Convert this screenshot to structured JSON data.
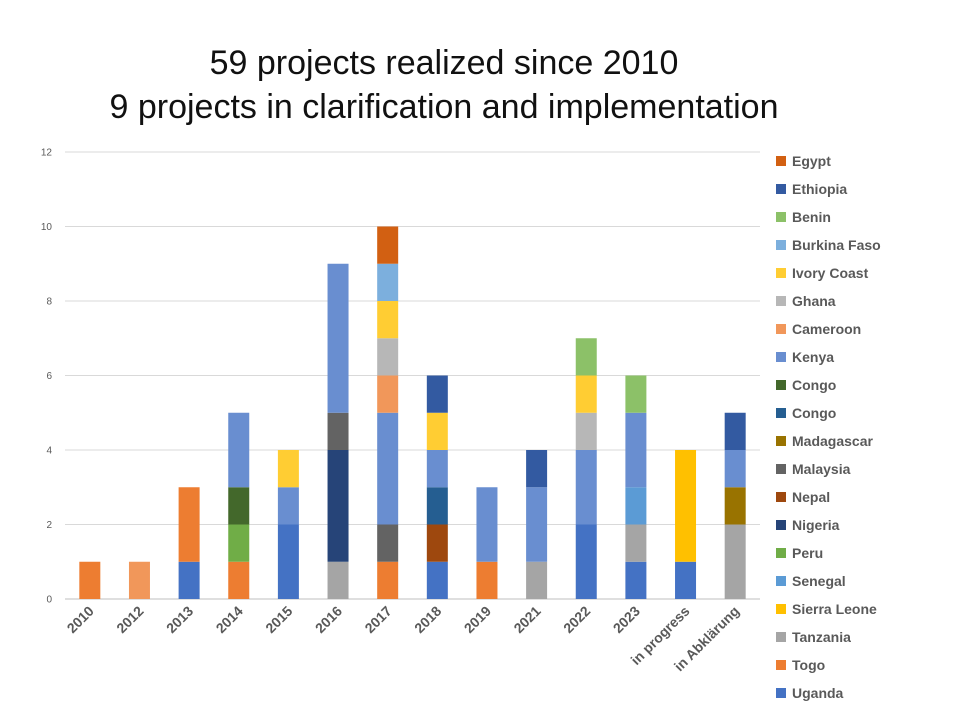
{
  "title_line1": "59 projects realized since 2010",
  "title_line2": "9 projects in clarification and implementation",
  "chart_data": {
    "type": "bar",
    "stacked": true,
    "title": "59 projects realized since 2010 / 9 projects in clarification and implementation",
    "xlabel": "",
    "ylabel": "",
    "ylim": [
      0,
      12
    ],
    "yticks": [
      0,
      2,
      4,
      6,
      8,
      10,
      12
    ],
    "grid": true,
    "legend_position": "right",
    "categories": [
      "2010",
      "2012",
      "2013",
      "2014",
      "2015",
      "2016",
      "2017",
      "2018",
      "2019",
      "2021",
      "2022",
      "2023",
      "in progress",
      "in Abklärung"
    ],
    "series": [
      {
        "name": "Uganda",
        "color": "#4472C4",
        "values": [
          0,
          0,
          1,
          0,
          2,
          0,
          0,
          1,
          0,
          0,
          2,
          1,
          1,
          0
        ]
      },
      {
        "name": "Togo",
        "color": "#ED7D31",
        "values": [
          1,
          0,
          2,
          1,
          0,
          0,
          1,
          0,
          1,
          0,
          0,
          0,
          0,
          0
        ]
      },
      {
        "name": "Tanzania",
        "color": "#A5A5A5",
        "values": [
          0,
          0,
          0,
          0,
          0,
          1,
          0,
          0,
          0,
          1,
          0,
          1,
          0,
          2
        ]
      },
      {
        "name": "Sierra Leone",
        "color": "#FFC000",
        "values": [
          0,
          0,
          0,
          0,
          0,
          0,
          0,
          0,
          0,
          0,
          0,
          0,
          3,
          0
        ]
      },
      {
        "name": "Senegal",
        "color": "#5B9BD5",
        "values": [
          0,
          0,
          0,
          0,
          0,
          0,
          0,
          0,
          0,
          0,
          0,
          1,
          0,
          0
        ]
      },
      {
        "name": "Peru",
        "color": "#70AD47",
        "values": [
          0,
          0,
          0,
          1,
          0,
          0,
          0,
          0,
          0,
          0,
          0,
          0,
          0,
          0
        ]
      },
      {
        "name": "Nigeria",
        "color": "#264478",
        "values": [
          0,
          0,
          0,
          0,
          0,
          3,
          0,
          0,
          0,
          0,
          0,
          0,
          0,
          0
        ]
      },
      {
        "name": "Nepal",
        "color": "#9E480E",
        "values": [
          0,
          0,
          0,
          0,
          0,
          0,
          0,
          1,
          0,
          0,
          0,
          0,
          0,
          0
        ]
      },
      {
        "name": "Malaysia",
        "color": "#636363",
        "values": [
          0,
          0,
          0,
          0,
          0,
          1,
          1,
          0,
          0,
          0,
          0,
          0,
          0,
          0
        ]
      },
      {
        "name": "Madagascar",
        "color": "#997300",
        "values": [
          0,
          0,
          0,
          0,
          0,
          0,
          0,
          0,
          0,
          0,
          0,
          0,
          0,
          1
        ]
      },
      {
        "name": "Congo",
        "color": "#255E91",
        "values": [
          0,
          0,
          0,
          0,
          0,
          0,
          0,
          1,
          0,
          0,
          0,
          0,
          0,
          0
        ]
      },
      {
        "name": "Congo",
        "color": "#43682B",
        "values": [
          0,
          0,
          0,
          1,
          0,
          0,
          0,
          0,
          0,
          0,
          0,
          0,
          0,
          0
        ]
      },
      {
        "name": "Kenya",
        "color": "#698ED0",
        "values": [
          0,
          0,
          0,
          2,
          1,
          4,
          3,
          1,
          2,
          2,
          2,
          2,
          0,
          1
        ]
      },
      {
        "name": "Cameroon",
        "color": "#F1975A",
        "values": [
          0,
          1,
          0,
          0,
          0,
          0,
          1,
          0,
          0,
          0,
          0,
          0,
          0,
          0
        ]
      },
      {
        "name": "Ghana",
        "color": "#B7B7B7",
        "values": [
          0,
          0,
          0,
          0,
          0,
          0,
          1,
          0,
          0,
          0,
          1,
          0,
          0,
          0
        ]
      },
      {
        "name": "Ivory Coast",
        "color": "#FFCD33",
        "values": [
          0,
          0,
          0,
          0,
          1,
          0,
          1,
          1,
          0,
          0,
          1,
          0,
          0,
          0
        ]
      },
      {
        "name": "Burkina Faso",
        "color": "#7CAFDD",
        "values": [
          0,
          0,
          0,
          0,
          0,
          0,
          1,
          0,
          0,
          0,
          0,
          0,
          0,
          0
        ]
      },
      {
        "name": "Benin",
        "color": "#8CC168",
        "values": [
          0,
          0,
          0,
          0,
          0,
          0,
          0,
          0,
          0,
          0,
          1,
          1,
          0,
          0
        ]
      },
      {
        "name": "Ethiopia",
        "color": "#335AA1",
        "values": [
          0,
          0,
          0,
          0,
          0,
          0,
          0,
          1,
          0,
          1,
          0,
          0,
          0,
          1
        ]
      },
      {
        "name": "Egypt",
        "color": "#D26012",
        "values": [
          0,
          0,
          0,
          0,
          0,
          0,
          1,
          0,
          0,
          0,
          0,
          0,
          0,
          0
        ]
      }
    ]
  }
}
